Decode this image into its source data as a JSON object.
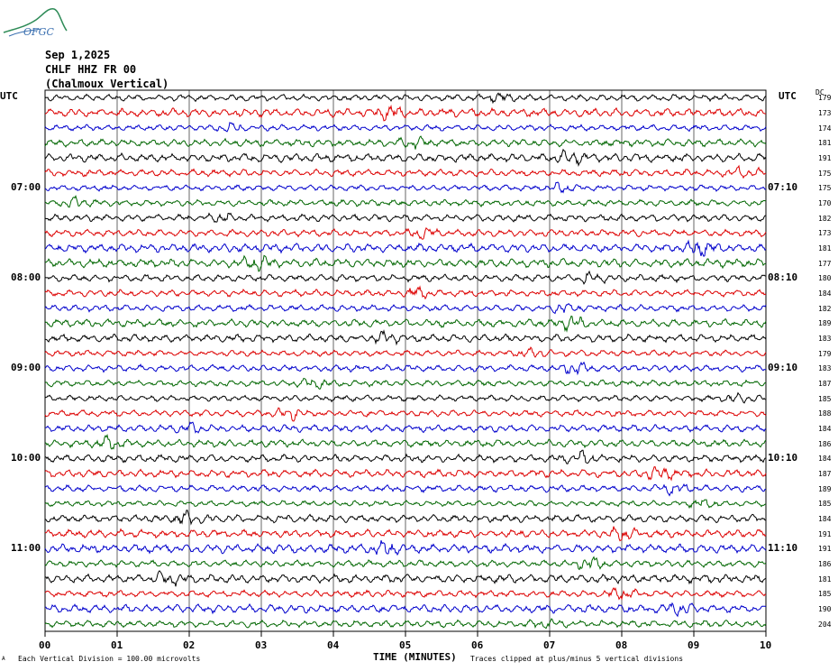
{
  "logo_text": "OFGC",
  "header": {
    "date": "Sep 1,2025",
    "station": "CHLF HHZ FR 00",
    "site": "(Chalmoux Vertical)"
  },
  "utc_left": "UTC",
  "utc_right": "UTC",
  "dc_label": "DC",
  "colors": {
    "black": "#000000",
    "red": "#dd0000",
    "blue": "#0000cc",
    "green": "#006600",
    "grid": "#000000"
  },
  "chart_data": {
    "type": "line",
    "title": "",
    "xlabel": "TIME (MINUTES)",
    "ylabel": "",
    "xlim": [
      0,
      10
    ],
    "x_ticks": [
      "00",
      "01",
      "02",
      "03",
      "04",
      "05",
      "06",
      "07",
      "08",
      "09",
      "10"
    ],
    "trace_minutes": 10,
    "trace_count": 36,
    "trace_color_cycle": [
      "black",
      "red",
      "blue",
      "green"
    ],
    "left_time_labels": [
      {
        "trace": 6,
        "label": "07:00"
      },
      {
        "trace": 12,
        "label": "08:00"
      },
      {
        "trace": 18,
        "label": "09:00"
      },
      {
        "trace": 24,
        "label": "10:00"
      },
      {
        "trace": 30,
        "label": "11:00"
      }
    ],
    "right_time_labels": [
      {
        "trace": 6,
        "label": "07:10"
      },
      {
        "trace": 12,
        "label": "08:10"
      },
      {
        "trace": 18,
        "label": "09:10"
      },
      {
        "trace": 24,
        "label": "10:10"
      },
      {
        "trace": 30,
        "label": "11:10"
      }
    ],
    "dc_offsets": [
      "179",
      "173",
      "174",
      "181",
      "191",
      "175",
      "175",
      "170",
      "182",
      "173",
      "181",
      "177",
      "180",
      "184",
      "182",
      "189",
      "183",
      "179",
      "183",
      "187",
      "185",
      "188",
      "184",
      "186",
      "184",
      "187",
      "189",
      "185",
      "184",
      "191",
      "191",
      "186",
      "181",
      "185",
      "190",
      "204"
    ],
    "clip_divisions": 5
  },
  "footer": {
    "vertical_division": "Each Vertical Division =  100.00 microvolts",
    "clip_note": "Traces clipped at plus/minus 5 vertical divisions",
    "corner_mark": "A"
  }
}
